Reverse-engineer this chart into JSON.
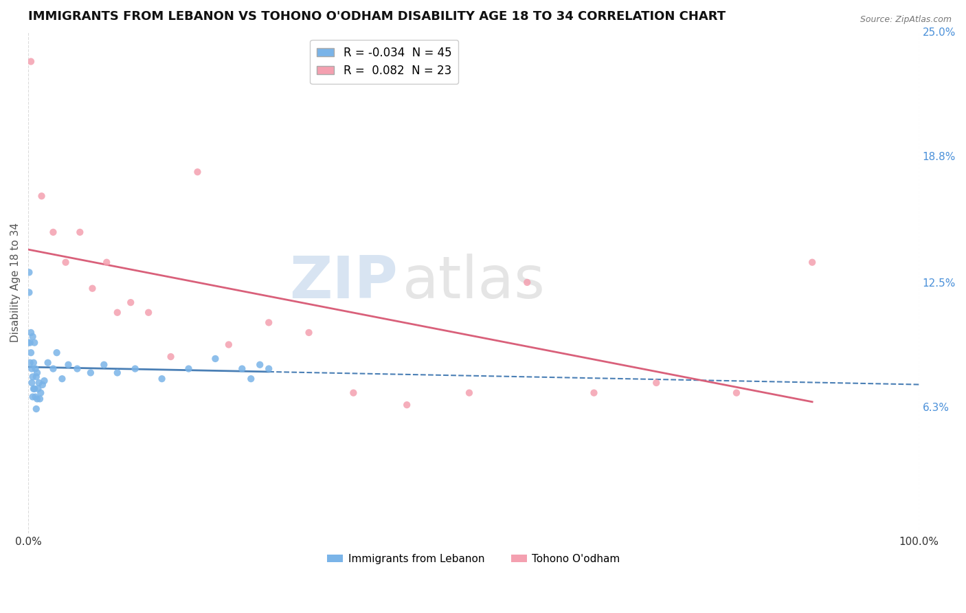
{
  "title": "IMMIGRANTS FROM LEBANON VS TOHONO O'ODHAM DISABILITY AGE 18 TO 34 CORRELATION CHART",
  "source_text": "Source: ZipAtlas.com",
  "ylabel": "Disability Age 18 to 34",
  "xlim": [
    0.0,
    1.0
  ],
  "ylim": [
    0.0,
    0.25
  ],
  "right_ytick_labels": [
    "6.3%",
    "12.5%",
    "18.8%",
    "25.0%"
  ],
  "right_ytick_values": [
    0.063,
    0.125,
    0.188,
    0.25
  ],
  "bottom_xtick_labels": [
    "0.0%",
    "100.0%"
  ],
  "series1_color": "#7ab4e8",
  "series2_color": "#f4a0b0",
  "series1_line_color": "#4a7fb5",
  "series2_line_color": "#d9607a",
  "series1_R": -0.034,
  "series1_N": 45,
  "series2_R": 0.082,
  "series2_N": 23,
  "series1_name": "Immigrants from Lebanon",
  "series2_name": "Tohono O'odham",
  "watermark_zip": "ZIP",
  "watermark_atlas": "atlas",
  "background_color": "#ffffff",
  "grid_color": "#d8d8d8",
  "series1_x": [
    0.001,
    0.001,
    0.002,
    0.002,
    0.003,
    0.003,
    0.004,
    0.004,
    0.005,
    0.005,
    0.005,
    0.006,
    0.006,
    0.007,
    0.007,
    0.008,
    0.008,
    0.009,
    0.009,
    0.01,
    0.01,
    0.011,
    0.012,
    0.013,
    0.014,
    0.016,
    0.018,
    0.022,
    0.028,
    0.032,
    0.038,
    0.045,
    0.055,
    0.07,
    0.085,
    0.1,
    0.12,
    0.15,
    0.18,
    0.21,
    0.24,
    0.25,
    0.26,
    0.27,
    0.0
  ],
  "series1_y": [
    0.13,
    0.12,
    0.095,
    0.085,
    0.1,
    0.09,
    0.082,
    0.075,
    0.098,
    0.078,
    0.068,
    0.085,
    0.072,
    0.095,
    0.072,
    0.082,
    0.068,
    0.078,
    0.062,
    0.08,
    0.067,
    0.072,
    0.075,
    0.067,
    0.07,
    0.074,
    0.076,
    0.085,
    0.082,
    0.09,
    0.077,
    0.084,
    0.082,
    0.08,
    0.084,
    0.08,
    0.082,
    0.077,
    0.082,
    0.087,
    0.082,
    0.077,
    0.084,
    0.082,
    0.095
  ],
  "series2_x": [
    0.003,
    0.015,
    0.028,
    0.042,
    0.058,
    0.072,
    0.088,
    0.1,
    0.115,
    0.135,
    0.16,
    0.19,
    0.225,
    0.27,
    0.315,
    0.365,
    0.425,
    0.495,
    0.56,
    0.635,
    0.705,
    0.795,
    0.88
  ],
  "series2_y": [
    0.235,
    0.168,
    0.15,
    0.135,
    0.15,
    0.122,
    0.135,
    0.11,
    0.115,
    0.11,
    0.088,
    0.18,
    0.094,
    0.105,
    0.1,
    0.07,
    0.064,
    0.07,
    0.125,
    0.07,
    0.075,
    0.07,
    0.135
  ]
}
